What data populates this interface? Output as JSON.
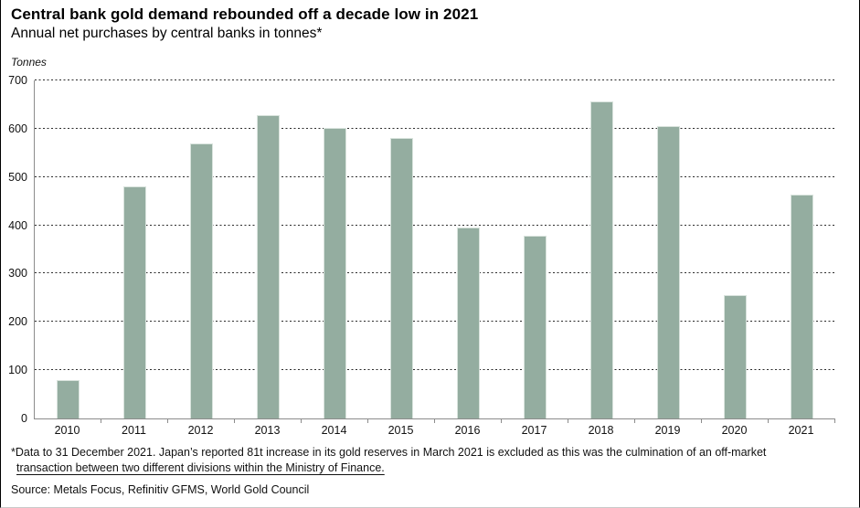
{
  "header": {
    "title": "Central bank gold demand rebounded off a decade low in 2021",
    "subtitle": "Annual net purchases by central banks in tonnes*"
  },
  "chart_data": {
    "type": "bar",
    "title": "Central bank gold demand rebounded off a decade low in 2021",
    "subtitle": "Annual net purchases by central banks in tonnes*",
    "unit_label": "Tonnes",
    "categories": [
      "2010",
      "2011",
      "2012",
      "2013",
      "2014",
      "2015",
      "2016",
      "2017",
      "2018",
      "2019",
      "2020",
      "2021"
    ],
    "values": [
      79,
      481,
      569,
      629,
      601,
      580,
      395,
      379,
      656,
      605,
      255,
      463
    ],
    "ylim": [
      0,
      700
    ],
    "ytick_interval": 100,
    "grid": "horizontal-dotted",
    "legend": "none",
    "bar_color": "#94ada0",
    "bar_edge_color": "#d9e3dd",
    "axis_color": "#8c8c8c"
  },
  "footer": {
    "footnote_line1": "*Data to 31 December 2021. Japan’s reported 81t increase in its gold reserves in March 2021 is excluded as this was the culmination of an off-market",
    "footnote_line2": "transaction between two different divisions within the Ministry of Finance.",
    "source": "Source: Metals Focus, Refinitiv GFMS, World Gold Council"
  }
}
